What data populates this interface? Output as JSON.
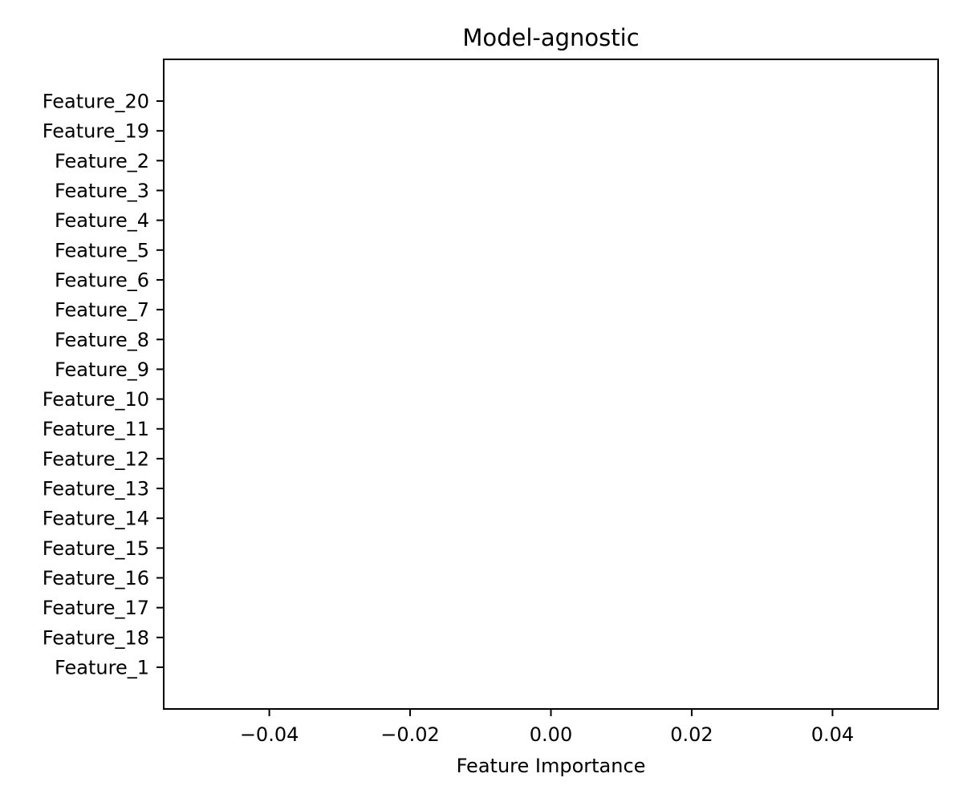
{
  "chart_data": {
    "type": "bar",
    "orientation": "horizontal",
    "title": "Model-agnostic",
    "xlabel": "Feature Importance",
    "ylabel": "",
    "categories": [
      "Feature_1",
      "Feature_18",
      "Feature_17",
      "Feature_16",
      "Feature_15",
      "Feature_14",
      "Feature_13",
      "Feature_12",
      "Feature_11",
      "Feature_10",
      "Feature_9",
      "Feature_8",
      "Feature_7",
      "Feature_6",
      "Feature_5",
      "Feature_4",
      "Feature_3",
      "Feature_2",
      "Feature_19",
      "Feature_20"
    ],
    "values": [
      0,
      0,
      0,
      0,
      0,
      0,
      0,
      0,
      0,
      0,
      0,
      0,
      0,
      0,
      0,
      0,
      0,
      0,
      0,
      0
    ],
    "xlim": [
      -0.055,
      0.055
    ],
    "xticks": [
      -0.04,
      -0.02,
      0.0,
      0.02,
      0.04
    ],
    "xtick_labels": [
      "−0.04",
      "−0.02",
      "0.00",
      "0.02",
      "0.04"
    ],
    "grid": false,
    "legend": "none"
  }
}
